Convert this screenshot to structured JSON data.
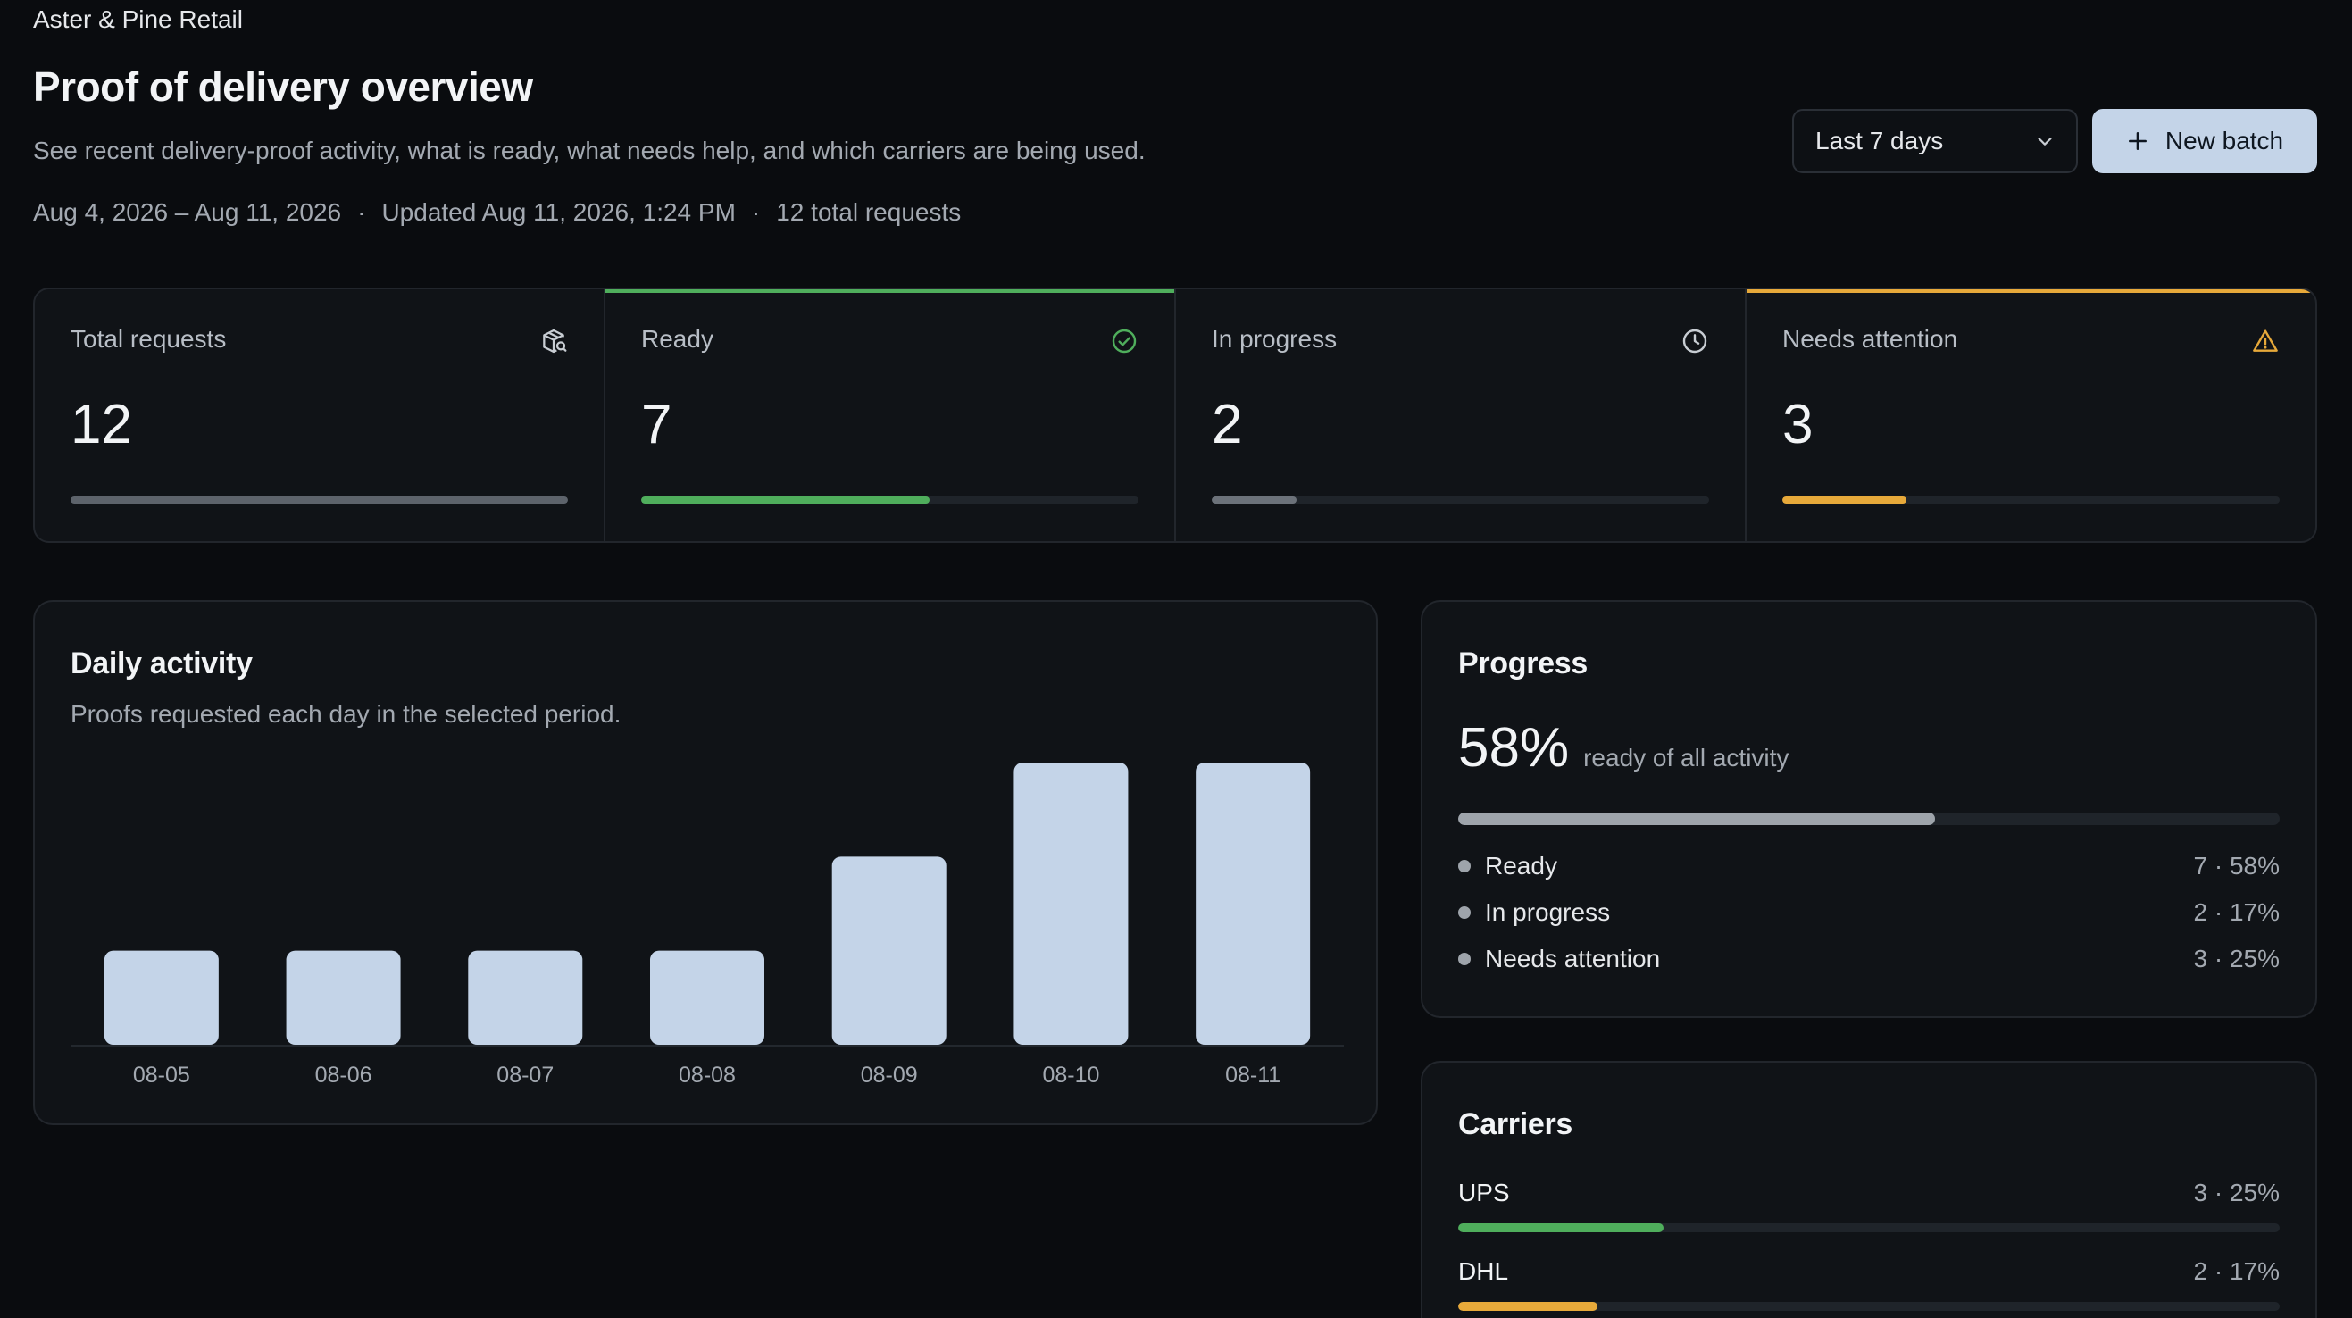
{
  "header": {
    "org": "Aster & Pine Retail",
    "title": "Proof of delivery overview",
    "subtitle": "See recent delivery-proof activity, what is ready, what needs help, and which carriers are being used.",
    "date_range": "Aug 4, 2026 – Aug 11, 2026",
    "updated": "Updated Aug 11, 2026, 1:24 PM",
    "total_requests_text": "12 total requests",
    "range_select": {
      "value": "Last 7 days",
      "icon": "chevron-down-icon"
    },
    "new_batch_label": "New batch"
  },
  "kpis": [
    {
      "label": "Total requests",
      "value": "12",
      "icon": "package-search-icon",
      "accent": "",
      "fill_fraction": 1.0,
      "fill_color": "#5d636b"
    },
    {
      "label": "Ready",
      "value": "7",
      "icon": "check-circle-icon",
      "accent": "#4fae5c",
      "fill_fraction": 0.58,
      "fill_color": "#4fae5c"
    },
    {
      "label": "In progress",
      "value": "2",
      "icon": "clock-icon",
      "accent": "",
      "fill_fraction": 0.17,
      "fill_color": "#6c727a"
    },
    {
      "label": "Needs attention",
      "value": "3",
      "icon": "warning-triangle-icon",
      "accent": "#e7a93a",
      "fill_fraction": 0.25,
      "fill_color": "#e7a93a"
    }
  ],
  "daily_activity": {
    "title": "Daily activity",
    "description": "Proofs requested each day in the selected period."
  },
  "chart_data": {
    "type": "bar",
    "categories": [
      "08-05",
      "08-06",
      "08-07",
      "08-08",
      "08-09",
      "08-10",
      "08-11"
    ],
    "values": [
      1,
      1,
      1,
      1,
      2,
      3,
      3
    ],
    "ylim": [
      0,
      3
    ],
    "title": "",
    "xlabel": "",
    "ylabel": "",
    "bar_color": "#c4d4e8"
  },
  "progress": {
    "title": "Progress",
    "percent": "58%",
    "caption": "ready of all activity",
    "fill_fraction": 0.58,
    "legend": [
      {
        "label": "Ready",
        "value": "7 · 58%"
      },
      {
        "label": "In progress",
        "value": "2 · 17%"
      },
      {
        "label": "Needs attention",
        "value": "3 · 25%"
      }
    ]
  },
  "carriers": {
    "title": "Carriers",
    "items": [
      {
        "name": "UPS",
        "value": "3 · 25%",
        "fraction": 0.25,
        "color": "#4fae5c"
      },
      {
        "name": "DHL",
        "value": "2 · 17%",
        "fraction": 0.17,
        "color": "#e7a93a"
      }
    ]
  }
}
